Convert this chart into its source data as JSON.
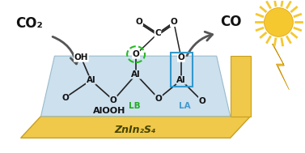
{
  "fig_width": 3.77,
  "fig_height": 1.89,
  "dpi": 100,
  "bg_color": "#ffffff",
  "slab_color": "#f0c84a",
  "slab_edge_color": "#c8a020",
  "surface_color": "#cce0ee",
  "surface_edge_color": "#99bbcc",
  "ZnIn2S4_label": "ZnIn₂S₄",
  "AlOOH_label": "AlOOH",
  "LB_label": "LB",
  "LA_label": "LA",
  "CO2_label": "CO₂",
  "CO_label": "CO",
  "bond_color": "#222222",
  "green_circle_color": "#22bb22",
  "blue_box_color": "#3399cc",
  "LB_color": "#22aa22",
  "LA_color": "#4499cc",
  "sun_body_color": "#f5c830",
  "sun_ray_color": "#f5c830",
  "lightning_color": "#f5c830",
  "arrow_color": "#555555",
  "text_color": "#111111"
}
